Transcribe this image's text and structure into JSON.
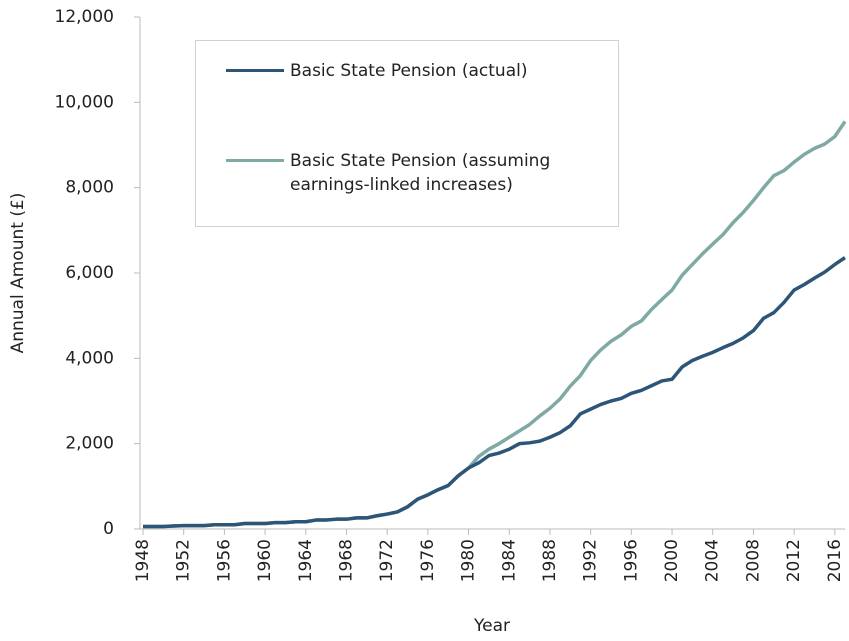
{
  "chart_data": {
    "type": "line",
    "x_label": "Year",
    "y_label": "Annual Amount (£)",
    "x": [
      1948,
      1949,
      1950,
      1951,
      1952,
      1953,
      1954,
      1955,
      1956,
      1957,
      1958,
      1959,
      1960,
      1961,
      1962,
      1963,
      1964,
      1965,
      1966,
      1967,
      1968,
      1969,
      1970,
      1971,
      1972,
      1973,
      1974,
      1975,
      1976,
      1977,
      1978,
      1979,
      1980,
      1981,
      1982,
      1983,
      1984,
      1985,
      1986,
      1987,
      1988,
      1989,
      1990,
      1991,
      1992,
      1993,
      1994,
      1995,
      1996,
      1997,
      1998,
      1999,
      2000,
      2001,
      2002,
      2003,
      2004,
      2005,
      2006,
      2007,
      2008,
      2009,
      2010,
      2011,
      2012,
      2013,
      2014,
      2015,
      2016,
      2017
    ],
    "series": [
      {
        "name": "Basic State Pension (actual)",
        "color": "#2d5577",
        "values": [
          60,
          60,
          60,
          70,
          80,
          80,
          80,
          100,
          100,
          100,
          130,
          130,
          130,
          150,
          150,
          170,
          170,
          210,
          210,
          230,
          230,
          260,
          260,
          310,
          350,
          400,
          520,
          700,
          800,
          920,
          1020,
          1250,
          1430,
          1550,
          1720,
          1780,
          1870,
          2000,
          2020,
          2060,
          2150,
          2260,
          2420,
          2700,
          2810,
          2920,
          3000,
          3060,
          3180,
          3250,
          3360,
          3470,
          3510,
          3800,
          3950,
          4050,
          4140,
          4250,
          4350,
          4480,
          4650,
          4940,
          5070,
          5310,
          5600,
          5730,
          5880,
          6020,
          6200,
          6360
        ]
      },
      {
        "name": "Basic State Pension (assuming earnings-linked increases)",
        "color": "#7fa9a4",
        "values": [
          60,
          60,
          60,
          70,
          80,
          80,
          80,
          100,
          100,
          100,
          130,
          130,
          130,
          150,
          150,
          170,
          170,
          210,
          210,
          230,
          230,
          260,
          260,
          310,
          350,
          400,
          520,
          700,
          800,
          920,
          1020,
          1250,
          1430,
          1700,
          1870,
          2000,
          2150,
          2300,
          2450,
          2650,
          2830,
          3050,
          3350,
          3600,
          3950,
          4200,
          4400,
          4550,
          4750,
          4880,
          5150,
          5380,
          5600,
          5950,
          6200,
          6450,
          6680,
          6900,
          7180,
          7420,
          7700,
          8000,
          8280,
          8400,
          8600,
          8780,
          8920,
          9020,
          9200,
          9550
        ]
      }
    ],
    "xlim": [
      1948,
      2017
    ],
    "xticks": [
      1948,
      1952,
      1956,
      1960,
      1964,
      1968,
      1972,
      1976,
      1980,
      1984,
      1988,
      1992,
      1996,
      2000,
      2004,
      2008,
      2012,
      2016
    ],
    "ylim": [
      0,
      12000
    ],
    "yticks": [
      0,
      {
        "value": 2000,
        "label": "2,000"
      },
      {
        "value": 4000,
        "label": "4,000"
      },
      {
        "value": 6000,
        "label": "6,000"
      },
      {
        "value": 8000,
        "label": "8,000"
      },
      {
        "value": 10000,
        "label": "10,000"
      },
      {
        "value": 12000,
        "label": "12,000"
      }
    ],
    "grid": false
  }
}
